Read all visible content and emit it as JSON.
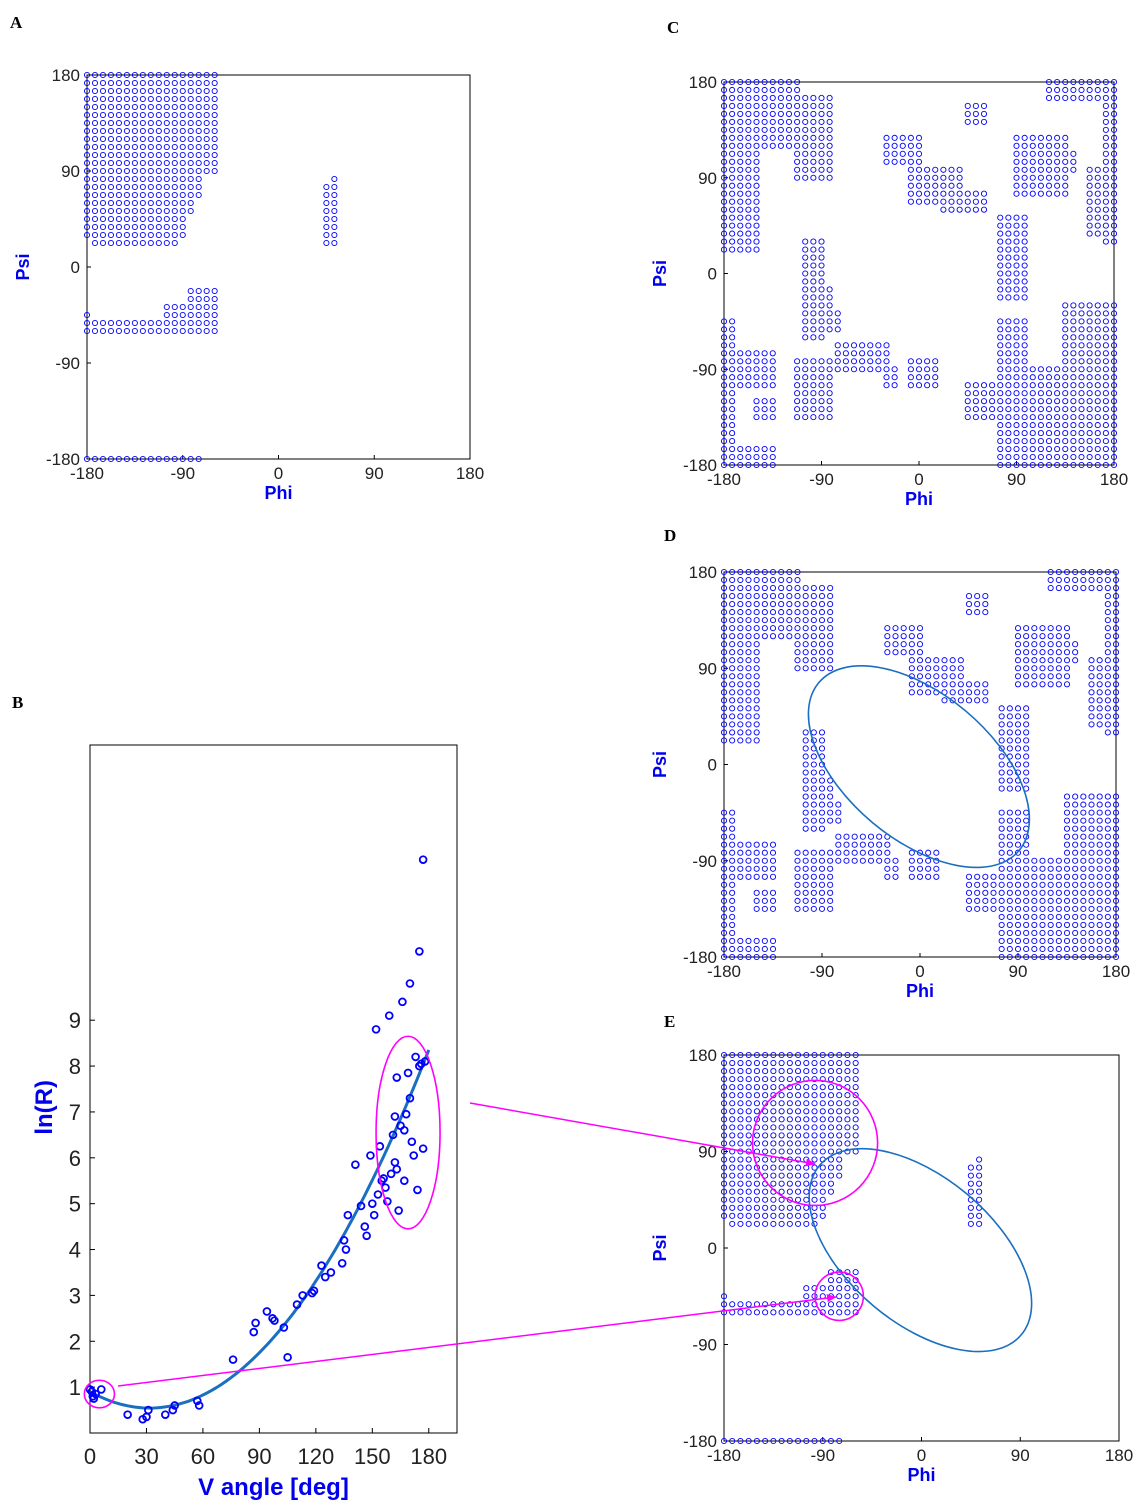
{
  "panel_labels": {
    "A": "A",
    "B": "B",
    "C": "C",
    "D": "D",
    "E": "E"
  },
  "colors": {
    "points": "#0000ff",
    "fit": "#1a6fc0",
    "highlight": "#ff00ff",
    "axes": "#000000",
    "axis_label": "#0000ee"
  },
  "chart_data": [
    {
      "id": "A",
      "type": "scatter",
      "marker": "open-circle",
      "xlabel": "Phi",
      "ylabel": "Psi",
      "xlim": [
        -180,
        180
      ],
      "ylim": [
        -180,
        180
      ],
      "xticks": [
        -180,
        -90,
        0,
        90,
        180
      ],
      "yticks": [
        -180,
        -90,
        0,
        90,
        180
      ],
      "grid_step": 7.5,
      "point_regions": [
        {
          "x": [
            -180,
            -60
          ],
          "y": [
            90,
            180
          ]
        },
        {
          "x": [
            -180,
            -75
          ],
          "y": [
            67.5,
            90
          ]
        },
        {
          "x": [
            -180,
            -82.5
          ],
          "y": [
            52.5,
            67.5
          ]
        },
        {
          "x": [
            -180,
            -90
          ],
          "y": [
            30,
            52.5
          ]
        },
        {
          "x": [
            -172.5,
            -97.5
          ],
          "y": [
            22.5,
            30
          ]
        },
        {
          "x": [
            -82.5,
            -60
          ],
          "y": [
            -60,
            -22.5
          ]
        },
        {
          "x": [
            -105,
            -90
          ],
          "y": [
            -45,
            -37.5
          ]
        },
        {
          "x": [
            -180,
            -90
          ],
          "y": [
            -60,
            -52.5
          ]
        },
        {
          "x": [
            -180,
            -180
          ],
          "y": [
            -45,
            -45
          ]
        },
        {
          "x": [
            45,
            52.5
          ],
          "y": [
            22.5,
            75
          ]
        },
        {
          "x": [
            52.5,
            52.5
          ],
          "y": [
            82.5,
            82.5
          ]
        },
        {
          "x": [
            -180,
            -75
          ],
          "y": [
            -180,
            -180
          ]
        }
      ]
    },
    {
      "id": "B",
      "type": "scatter",
      "xlabel": "V angle [deg]",
      "ylabel": "ln(R)",
      "xlim": [
        0,
        195
      ],
      "ylim": [
        0,
        15
      ],
      "xticks": [
        0,
        30,
        60,
        90,
        120,
        150,
        180
      ],
      "yticks": [
        1,
        2,
        3,
        4,
        5,
        6,
        7,
        8,
        9
      ],
      "points": [
        [
          0,
          0.95
        ],
        [
          1,
          0.9
        ],
        [
          1.5,
          0.8
        ],
        [
          2,
          0.75
        ],
        [
          3,
          0.85
        ],
        [
          6,
          0.95
        ],
        [
          20,
          0.4
        ],
        [
          28,
          0.3
        ],
        [
          30,
          0.35
        ],
        [
          31,
          0.5
        ],
        [
          40,
          0.4
        ],
        [
          44,
          0.5
        ],
        [
          45,
          0.6
        ],
        [
          57,
          0.7
        ],
        [
          58,
          0.6
        ],
        [
          76,
          1.6
        ],
        [
          87,
          2.2
        ],
        [
          88,
          2.4
        ],
        [
          94,
          2.65
        ],
        [
          97,
          2.5
        ],
        [
          98,
          2.45
        ],
        [
          103,
          2.3
        ],
        [
          105,
          1.65
        ],
        [
          110,
          2.8
        ],
        [
          113,
          3.0
        ],
        [
          118,
          3.05
        ],
        [
          119,
          3.1
        ],
        [
          123,
          3.65
        ],
        [
          125,
          3.4
        ],
        [
          128,
          3.5
        ],
        [
          134,
          3.7
        ],
        [
          135,
          4.2
        ],
        [
          136,
          4.0
        ],
        [
          137,
          4.75
        ],
        [
          141,
          5.85
        ],
        [
          144,
          4.95
        ],
        [
          146,
          4.5
        ],
        [
          147,
          4.3
        ],
        [
          149,
          6.05
        ],
        [
          150,
          5.0
        ],
        [
          151,
          4.75
        ],
        [
          152,
          8.8
        ],
        [
          153,
          5.2
        ],
        [
          154,
          6.25
        ],
        [
          155,
          5.5
        ],
        [
          156,
          5.55
        ],
        [
          157,
          5.35
        ],
        [
          158,
          5.05
        ],
        [
          159,
          9.1
        ],
        [
          160,
          5.65
        ],
        [
          161,
          6.5
        ],
        [
          162,
          5.9
        ],
        [
          162,
          6.9
        ],
        [
          163,
          7.75
        ],
        [
          163,
          5.75
        ],
        [
          164,
          4.85
        ],
        [
          165,
          6.7
        ],
        [
          166,
          9.4
        ],
        [
          167,
          6.6
        ],
        [
          167,
          5.5
        ],
        [
          168,
          6.95
        ],
        [
          169,
          7.85
        ],
        [
          170,
          9.8
        ],
        [
          170,
          7.3
        ],
        [
          171,
          6.35
        ],
        [
          172,
          6.05
        ],
        [
          173,
          8.2
        ],
        [
          174,
          5.3
        ],
        [
          175,
          8.0
        ],
        [
          175,
          10.5
        ],
        [
          176,
          8.05
        ],
        [
          177,
          6.2
        ],
        [
          177,
          12.5
        ],
        [
          178,
          8.1
        ]
      ],
      "fit_curve": {
        "type": "quadratic",
        "coefficients": [
          0.9,
          -0.0225,
          0.000355
        ],
        "x_range": [
          0,
          180
        ]
      },
      "highlight_ellipses": [
        {
          "center": [
            5,
            0.85
          ],
          "rx": 8,
          "ry": 0.3
        },
        {
          "center": [
            169,
            6.55
          ],
          "rx": 17,
          "ry": 2.1
        }
      ]
    },
    {
      "id": "C",
      "type": "scatter",
      "marker": "open-circle",
      "xlabel": "Phi",
      "ylabel": "Psi",
      "xlim": [
        -180,
        180
      ],
      "ylim": [
        -180,
        180
      ],
      "xticks": [
        -180,
        -90,
        0,
        90,
        180
      ],
      "yticks": [
        -180,
        -90,
        0,
        90,
        180
      ],
      "grid_step": 7.5,
      "point_regions": [
        {
          "x": [
            -180,
            -112.5
          ],
          "y": [
            120,
            180
          ]
        },
        {
          "x": [
            -112.5,
            -82.5
          ],
          "y": [
            90,
            165
          ]
        },
        {
          "x": [
            -180,
            -150
          ],
          "y": [
            22.5,
            120
          ]
        },
        {
          "x": [
            -180,
            -172.5
          ],
          "y": [
            -180,
            -45
          ]
        },
        {
          "x": [
            -172.5,
            -135
          ],
          "y": [
            -105,
            -75
          ]
        },
        {
          "x": [
            -150,
            -135
          ],
          "y": [
            -135,
            -120
          ]
        },
        {
          "x": [
            -112.5,
            -82.5
          ],
          "y": [
            -135,
            -82.5
          ]
        },
        {
          "x": [
            -105,
            -90
          ],
          "y": [
            -60,
            30
          ]
        },
        {
          "x": [
            -97.5,
            -82.5
          ],
          "y": [
            -37.5,
            -15
          ]
        },
        {
          "x": [
            -90,
            -75
          ],
          "y": [
            -52.5,
            -37.5
          ]
        },
        {
          "x": [
            -75,
            -30
          ],
          "y": [
            -90,
            -67.5
          ]
        },
        {
          "x": [
            -30,
            -22.5
          ],
          "y": [
            -105,
            -90
          ]
        },
        {
          "x": [
            -165,
            -135
          ],
          "y": [
            -180,
            -165
          ]
        },
        {
          "x": [
            -30,
            0
          ],
          "y": [
            105,
            127.5
          ]
        },
        {
          "x": [
            -7.5,
            37.5
          ],
          "y": [
            67.5,
            97.5
          ]
        },
        {
          "x": [
            22.5,
            60
          ],
          "y": [
            60,
            75
          ]
        },
        {
          "x": [
            45,
            60
          ],
          "y": [
            142.5,
            157.5
          ]
        },
        {
          "x": [
            75,
            97.5
          ],
          "y": [
            -22.5,
            52.5
          ]
        },
        {
          "x": [
            90,
            135
          ],
          "y": [
            75,
            127.5
          ]
        },
        {
          "x": [
            112.5,
            142.5
          ],
          "y": [
            97.5,
            112.5
          ]
        },
        {
          "x": [
            120,
            165
          ],
          "y": [
            165,
            180
          ]
        },
        {
          "x": [
            172.5,
            180
          ],
          "y": [
            30,
            180
          ]
        },
        {
          "x": [
            157.5,
            172.5
          ],
          "y": [
            37.5,
            97.5
          ]
        },
        {
          "x": [
            75,
            180
          ],
          "y": [
            -180,
            -90
          ]
        },
        {
          "x": [
            135,
            180
          ],
          "y": [
            -90,
            -30
          ]
        },
        {
          "x": [
            75,
            97.5
          ],
          "y": [
            -90,
            -45
          ]
        },
        {
          "x": [
            -7.5,
            15
          ],
          "y": [
            -105,
            -82.5
          ]
        },
        {
          "x": [
            45,
            67.5
          ],
          "y": [
            -135,
            -105
          ]
        }
      ]
    },
    {
      "id": "D",
      "type": "scatter",
      "marker": "open-circle",
      "xlabel": "Phi",
      "ylabel": "Psi",
      "xlim": [
        -180,
        180
      ],
      "ylim": [
        -180,
        180
      ],
      "xticks": [
        -180,
        -90,
        0,
        90,
        180
      ],
      "yticks": [
        -180,
        -90,
        0,
        90,
        180
      ],
      "same_points_as": "C",
      "ellipse": {
        "center": [
          -1,
          -2
        ],
        "semi_axes": [
          120,
          68
        ],
        "rotation_deg": -40
      }
    },
    {
      "id": "E",
      "type": "scatter",
      "marker": "open-circle",
      "xlabel": "Phi",
      "ylabel": "Psi",
      "xlim": [
        -180,
        180
      ],
      "ylim": [
        -180,
        180
      ],
      "xticks": [
        -180,
        -90,
        0,
        90,
        180
      ],
      "yticks": [
        -180,
        -90,
        0,
        90,
        180
      ],
      "same_points_as": "A",
      "ellipse": {
        "center": [
          -1,
          -2
        ],
        "semi_axes": [
          120,
          68
        ],
        "rotation_deg": -40
      },
      "highlight_circles": [
        {
          "center": [
            -97,
            98
          ],
          "radius": 57
        },
        {
          "center": [
            -75,
            -45
          ],
          "radius": 22
        }
      ]
    }
  ]
}
